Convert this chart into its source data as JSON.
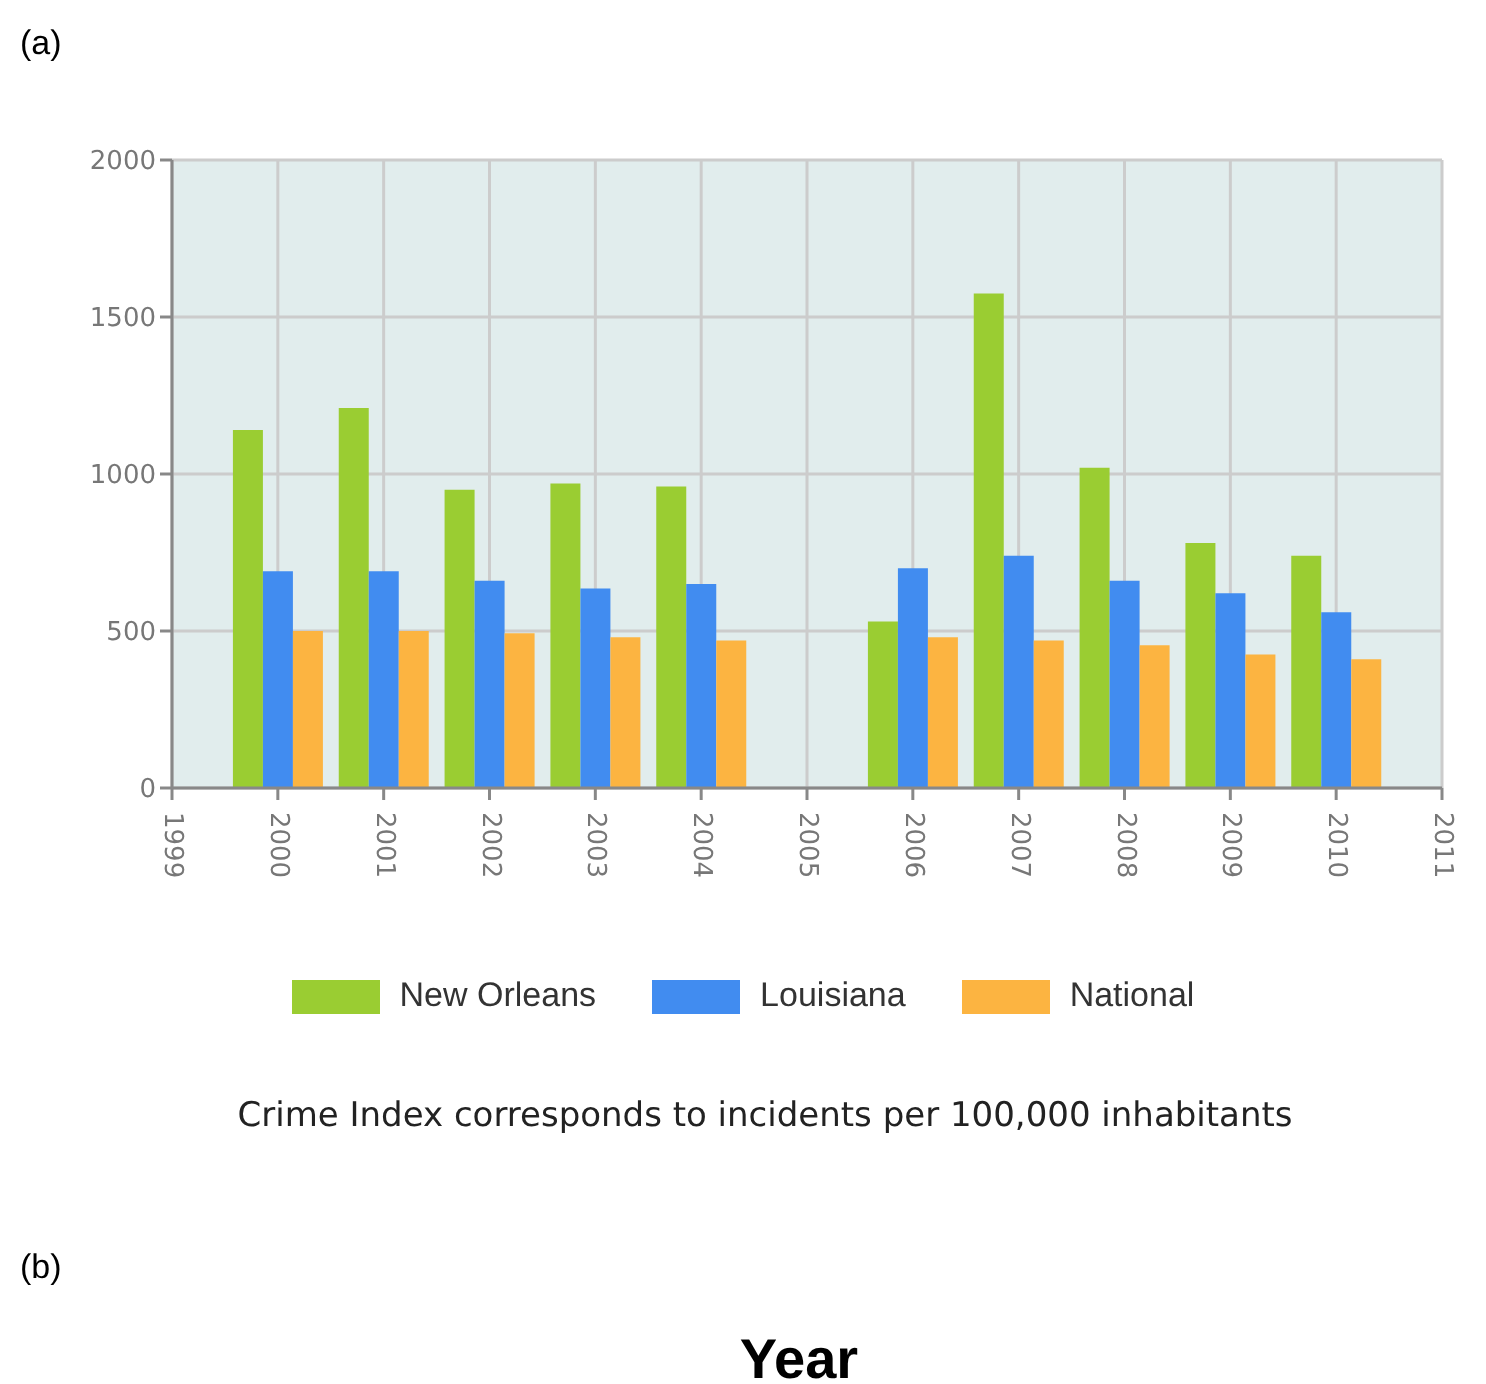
{
  "chart_data": {
    "type": "bar",
    "x": [
      2000,
      2001,
      2002,
      2003,
      2004,
      2006,
      2007,
      2008,
      2009,
      2010
    ],
    "series": [
      {
        "name": "New Orleans",
        "color": "#9acd32",
        "values": [
          1140,
          1210,
          950,
          970,
          960,
          530,
          1575,
          1020,
          780,
          740
        ]
      },
      {
        "name": "Louisiana",
        "color": "#418cf0",
        "values": [
          690,
          690,
          660,
          635,
          650,
          700,
          740,
          660,
          620,
          560
        ]
      },
      {
        "name": "National",
        "color": "#fcb441",
        "values": [
          500,
          500,
          493,
          480,
          470,
          480,
          470,
          455,
          425,
          410
        ]
      }
    ],
    "xlim": [
      1999,
      2011
    ],
    "xticks": [
      1999,
      2000,
      2001,
      2002,
      2003,
      2004,
      2005,
      2006,
      2007,
      2008,
      2009,
      2010,
      2011
    ],
    "ylim": [
      0,
      2000
    ],
    "yticks": [
      0,
      500,
      1000,
      1500,
      2000
    ],
    "grid": true,
    "legend": "bottom",
    "annotations": [
      "(a)",
      "Crime Index corresponds to incidents per 100,000 inhabitants",
      "(b)",
      "Year"
    ]
  }
}
